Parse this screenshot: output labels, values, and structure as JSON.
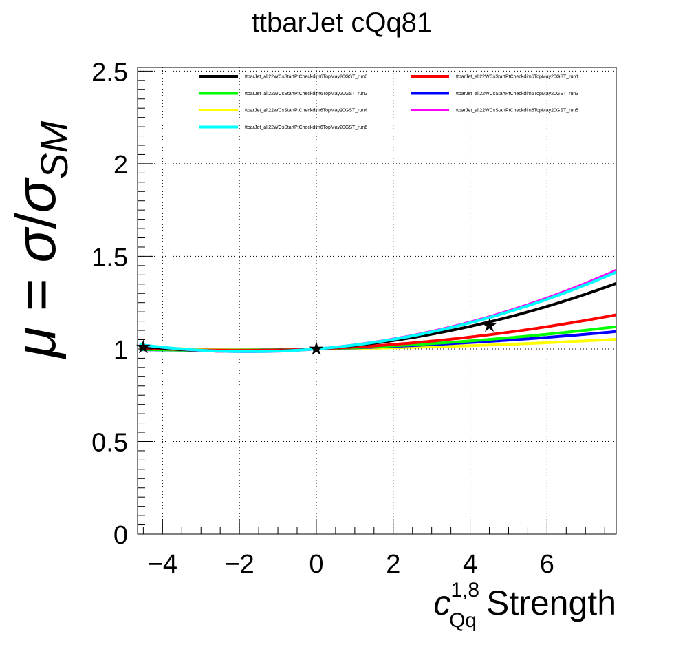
{
  "chart_data": {
    "type": "line",
    "title": "ttbarJet cQq81",
    "xlabel": {
      "base": "c",
      "sup": "1,8",
      "sub": "Qq",
      "rest": " Strength"
    },
    "ylabel": {
      "mu": "μ",
      "eq": " = ",
      "sigma": "σ",
      "slash": "/",
      "sub": "SM"
    },
    "xlim": [
      -4.65,
      7.8
    ],
    "ylim": [
      0,
      2.52
    ],
    "xticks": [
      -4,
      -2,
      0,
      2,
      4,
      6
    ],
    "xtick_labels": [
      "−4",
      "−2",
      "0",
      "2",
      "4",
      "6"
    ],
    "yticks": [
      0,
      0.5,
      1,
      1.5,
      2,
      2.5
    ],
    "ytick_labels": [
      "0",
      "0.5",
      "1",
      "1.5",
      "2",
      "2.5"
    ],
    "grid": true,
    "legend_position": "top",
    "series": [
      {
        "name": "ttbarJet_all22WCsStartPtCheckdim6TopMay20GST_run0",
        "color": "#000000",
        "a": 1.0,
        "b": 0.0147,
        "c": 0.00393
      },
      {
        "name": "ttbarJet_all22WCsStartPtCheckdim6TopMay20GST_run1",
        "color": "#ff0000",
        "a": 1.0,
        "b": 0.008,
        "c": 0.002
      },
      {
        "name": "ttbarJet_all22WCsStartPtCheckdim6TopMay20GST_run2",
        "color": "#00ff00",
        "a": 1.0,
        "b": 0.006,
        "c": 0.0012
      },
      {
        "name": "ttbarJet_all22WCsStartPtCheckdim6TopMay20GST_run3",
        "color": "#0000ff",
        "a": 1.0,
        "b": 0.005,
        "c": 0.0009
      },
      {
        "name": "ttbarJet_all22WCsStartPtCheckdim6TopMay20GST_run4",
        "color": "#ffff00",
        "a": 1.0,
        "b": 0.002,
        "c": 0.0006
      },
      {
        "name": "ttbarJet_all22WCsStartPtCheckdim6TopMay20GST_run5",
        "color": "#ff00ff",
        "a": 1.0,
        "b": 0.017,
        "c": 0.0048
      },
      {
        "name": "ttbarJet_all22WCsStartPtCheckdim6TopMay20GST_run6",
        "color": "#00ffff",
        "a": 1.0,
        "b": 0.0165,
        "c": 0.0047
      }
    ],
    "points": [
      {
        "x": -4.5,
        "y": 1.01
      },
      {
        "x": 0.0,
        "y": 1.0
      },
      {
        "x": 4.5,
        "y": 1.125
      }
    ]
  }
}
